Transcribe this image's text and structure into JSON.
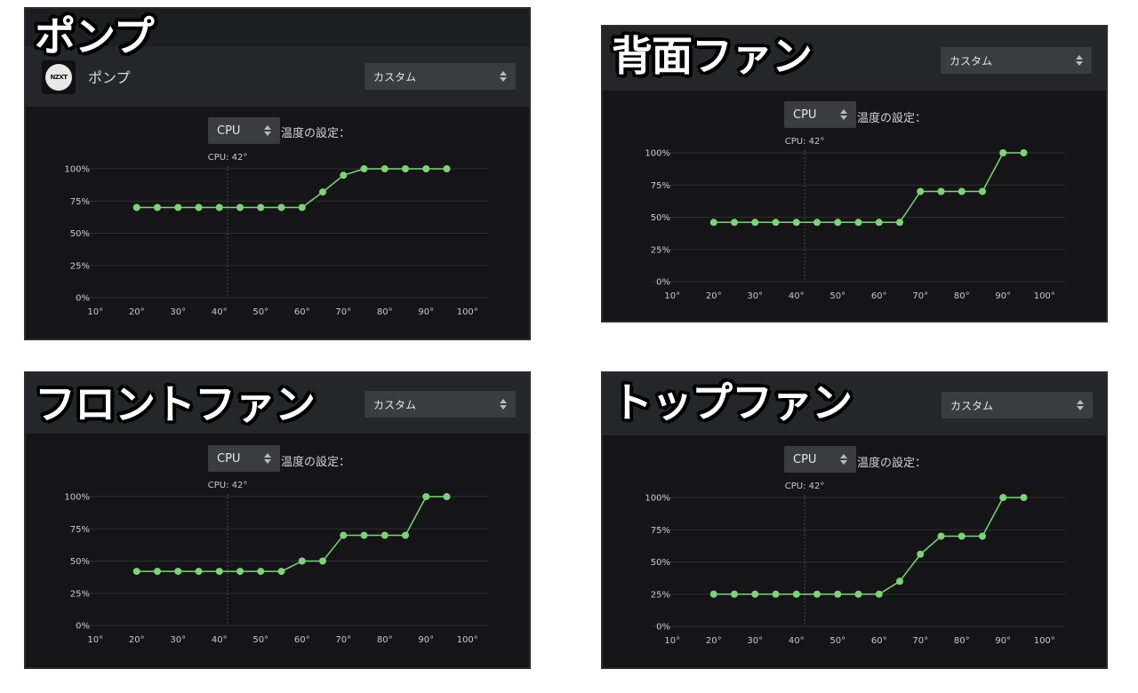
{
  "panels": [
    {
      "caption": "ポンプ",
      "device_name": "ポンプ",
      "logo_text": "NZXT",
      "profile": "カスタム",
      "sensor": "CPU",
      "temp_label": "温度の設定：",
      "cpu_readout": "CPU: 42°"
    },
    {
      "caption": "背面ファン",
      "profile": "カスタム",
      "sensor": "CPU",
      "temp_label": "温度の設定：",
      "cpu_readout": "CPU: 42°"
    },
    {
      "caption": "フロントファン",
      "profile": "カスタム",
      "sensor": "CPU",
      "temp_label": "温度の設定：",
      "cpu_readout": "CPU: 42°"
    },
    {
      "caption": "トップファン",
      "profile": "カスタム",
      "sensor": "CPU",
      "temp_label": "温度の設定：",
      "cpu_readout": "CPU: 42°"
    }
  ],
  "colors": {
    "curve": "#7fd27a",
    "grid": "#2e2f33",
    "tick_text": "#c9c9c9",
    "marker": "#4a4a4e"
  },
  "chart_data": [
    {
      "type": "line",
      "title": "ポンプ",
      "xlim": [
        5,
        105
      ],
      "ylim": [
        0,
        100
      ],
      "x_ticks": [
        "10°",
        "20°",
        "30°",
        "40°",
        "50°",
        "60°",
        "70°",
        "80°",
        "90°",
        "100°"
      ],
      "y_ticks": [
        "0%",
        "25%",
        "50%",
        "75%",
        "100%"
      ],
      "current_temp": 42,
      "x": [
        20,
        25,
        30,
        35,
        40,
        45,
        50,
        55,
        60,
        65,
        70,
        75,
        80,
        85,
        90,
        95
      ],
      "y": [
        70,
        70,
        70,
        70,
        70,
        70,
        70,
        70,
        70,
        82,
        95,
        100,
        100,
        100,
        100,
        100
      ]
    },
    {
      "type": "line",
      "title": "背面ファン",
      "xlim": [
        5,
        105
      ],
      "ylim": [
        0,
        100
      ],
      "x_ticks": [
        "10°",
        "20°",
        "30°",
        "40°",
        "50°",
        "60°",
        "70°",
        "80°",
        "90°",
        "100°"
      ],
      "y_ticks": [
        "0%",
        "25%",
        "50%",
        "75%",
        "100%"
      ],
      "current_temp": 42,
      "x": [
        20,
        25,
        30,
        35,
        40,
        45,
        50,
        55,
        60,
        65,
        70,
        75,
        80,
        85,
        90,
        95
      ],
      "y": [
        46,
        46,
        46,
        46,
        46,
        46,
        46,
        46,
        46,
        46,
        70,
        70,
        70,
        70,
        100,
        100
      ]
    },
    {
      "type": "line",
      "title": "フロントファン",
      "xlim": [
        5,
        105
      ],
      "ylim": [
        0,
        100
      ],
      "x_ticks": [
        "10°",
        "20°",
        "30°",
        "40°",
        "50°",
        "60°",
        "70°",
        "80°",
        "90°",
        "100°"
      ],
      "y_ticks": [
        "0%",
        "25%",
        "50%",
        "75%",
        "100%"
      ],
      "current_temp": 42,
      "x": [
        20,
        25,
        30,
        35,
        40,
        45,
        50,
        55,
        60,
        65,
        70,
        75,
        80,
        85,
        90,
        95
      ],
      "y": [
        42,
        42,
        42,
        42,
        42,
        42,
        42,
        42,
        50,
        50,
        70,
        70,
        70,
        70,
        100,
        100
      ]
    },
    {
      "type": "line",
      "title": "トップファン",
      "xlim": [
        5,
        105
      ],
      "ylim": [
        0,
        100
      ],
      "x_ticks": [
        "10°",
        "20°",
        "30°",
        "40°",
        "50°",
        "60°",
        "70°",
        "80°",
        "90°",
        "100°"
      ],
      "y_ticks": [
        "0%",
        "25%",
        "50%",
        "75%",
        "100%"
      ],
      "current_temp": 42,
      "x": [
        20,
        25,
        30,
        35,
        40,
        45,
        50,
        55,
        60,
        65,
        70,
        75,
        80,
        85,
        90,
        95
      ],
      "y": [
        25,
        25,
        25,
        25,
        25,
        25,
        25,
        25,
        25,
        35,
        56,
        70,
        70,
        70,
        100,
        100
      ]
    }
  ]
}
